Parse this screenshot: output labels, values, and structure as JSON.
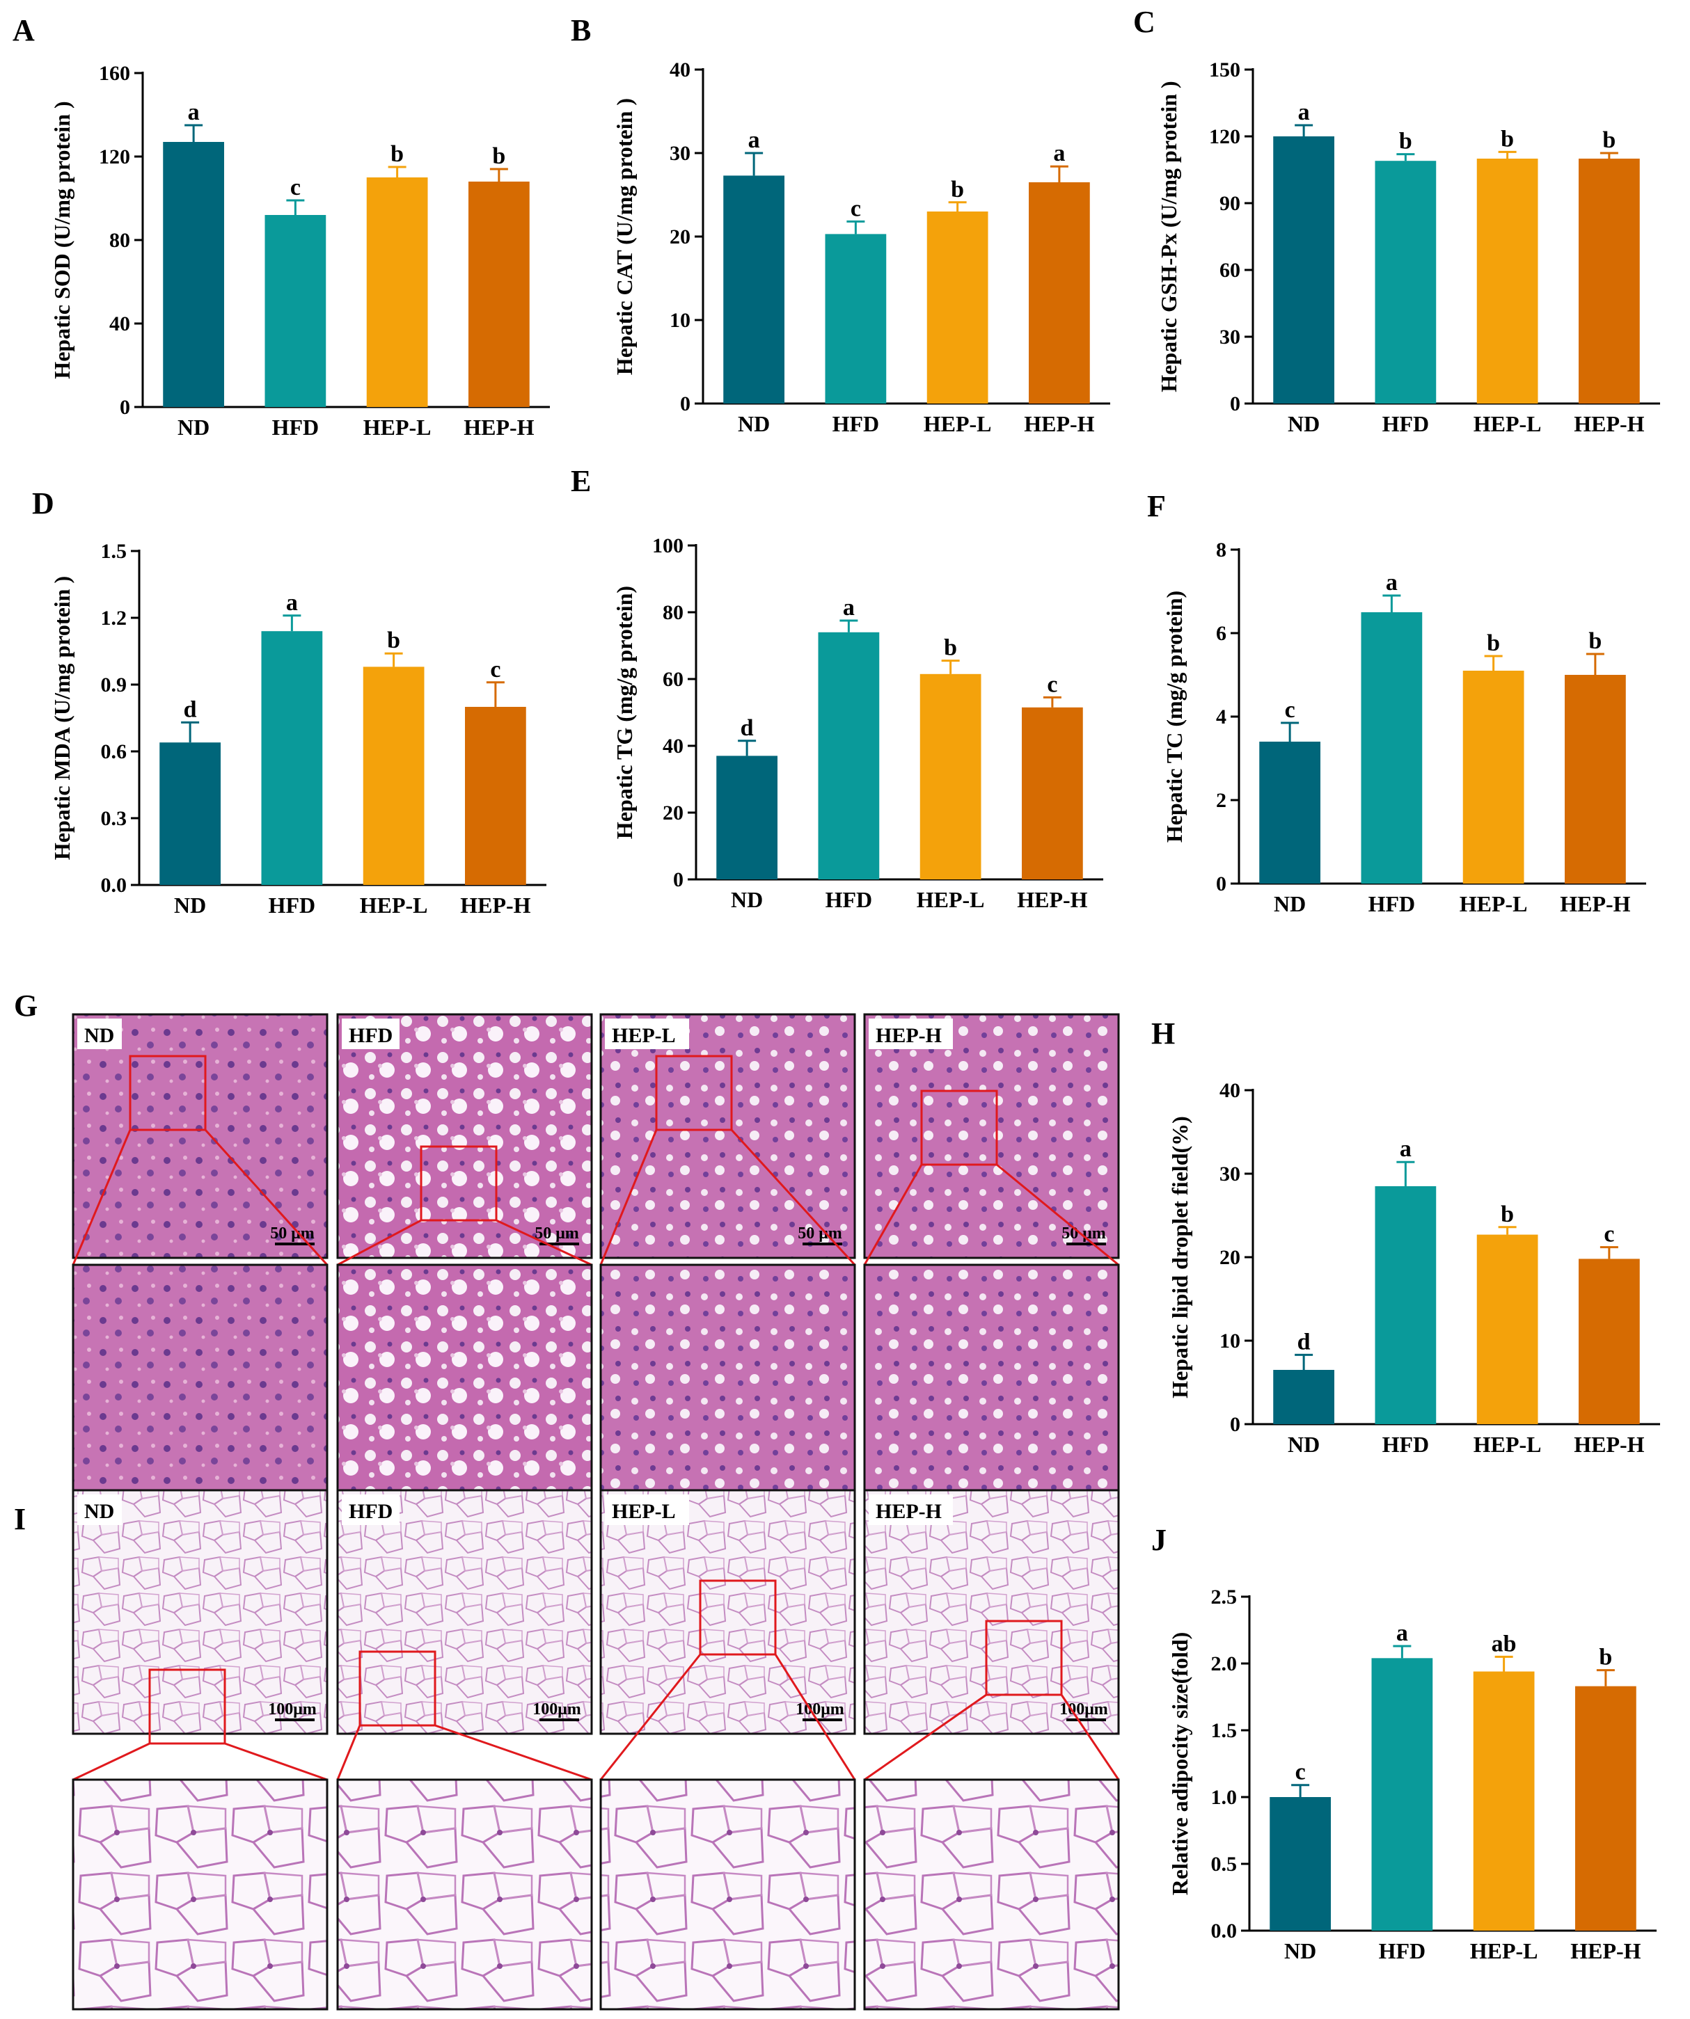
{
  "groups": [
    "ND",
    "HFD",
    "HEP-L",
    "HEP-H"
  ],
  "colors": {
    "ND": "#00667a",
    "HFD": "#0a9a9a",
    "HEP-L": "#f4a20b",
    "HEP-H": "#d66b02",
    "tissue_liver": "#c974b6",
    "tissue_fat": "#f7eef6",
    "zoom_box": "#e0191d"
  },
  "chart_data": [
    {
      "panel": "A",
      "type": "bar",
      "categories": [
        "ND",
        "HFD",
        "HEP-L",
        "HEP-H"
      ],
      "values": [
        127,
        92,
        110,
        108
      ],
      "errors": [
        8,
        7,
        5,
        6
      ],
      "sig": [
        "a",
        "c",
        "b",
        "b"
      ],
      "ylabel": "Hepatic SOD (U/mg protein )",
      "ylim": [
        0,
        160
      ],
      "yticks": [
        0,
        40,
        80,
        120,
        160
      ]
    },
    {
      "panel": "B",
      "type": "bar",
      "categories": [
        "ND",
        "HFD",
        "HEP-L",
        "HEP-H"
      ],
      "values": [
        27.3,
        20.3,
        23,
        26.5
      ],
      "errors": [
        2.7,
        1.5,
        1.1,
        1.9
      ],
      "sig": [
        "a",
        "c",
        "b",
        "a"
      ],
      "ylabel": "Hepatic CAT (U/mg protein )",
      "ylim": [
        0,
        40
      ],
      "yticks": [
        0,
        10,
        20,
        30,
        40
      ]
    },
    {
      "panel": "C",
      "type": "bar",
      "categories": [
        "ND",
        "HFD",
        "HEP-L",
        "HEP-H"
      ],
      "values": [
        120,
        109,
        110,
        110
      ],
      "errors": [
        5,
        3,
        3,
        2.5
      ],
      "sig": [
        "a",
        "b",
        "b",
        "b"
      ],
      "ylabel": "Hepatic GSH-Px (U/mg protein )",
      "ylim": [
        0,
        150
      ],
      "yticks": [
        0,
        30,
        60,
        90,
        120,
        150
      ]
    },
    {
      "panel": "D",
      "type": "bar",
      "categories": [
        "ND",
        "HFD",
        "HEP-L",
        "HEP-H"
      ],
      "values": [
        0.64,
        1.14,
        0.98,
        0.8
      ],
      "errors": [
        0.09,
        0.07,
        0.06,
        0.11
      ],
      "sig": [
        "d",
        "a",
        "b",
        "c"
      ],
      "ylabel": "Hepatic MDA (U/mg protein )",
      "ylim": [
        0,
        1.5
      ],
      "yticks": [
        "0.0",
        "0.3",
        "0.6",
        "0.9",
        "1.2",
        "1.5"
      ]
    },
    {
      "panel": "E",
      "type": "bar",
      "categories": [
        "ND",
        "HFD",
        "HEP-L",
        "HEP-H"
      ],
      "values": [
        37,
        74,
        61.5,
        51.5
      ],
      "errors": [
        4.5,
        3.5,
        4,
        3
      ],
      "sig": [
        "d",
        "a",
        "b",
        "c"
      ],
      "ylabel": "Hepatic TG (mg/g protein)",
      "ylim": [
        0,
        100
      ],
      "yticks": [
        0,
        20,
        40,
        60,
        80,
        100
      ]
    },
    {
      "panel": "F",
      "type": "bar",
      "categories": [
        "ND",
        "HFD",
        "HEP-L",
        "HEP-H"
      ],
      "values": [
        3.4,
        6.5,
        5.1,
        5.0
      ],
      "errors": [
        0.45,
        0.4,
        0.35,
        0.5
      ],
      "sig": [
        "c",
        "a",
        "b",
        "b"
      ],
      "ylabel": "Hepatic TC (mg/g protein)",
      "ylim": [
        0,
        8
      ],
      "yticks": [
        0,
        2,
        4,
        6,
        8
      ]
    },
    {
      "panel": "H",
      "type": "bar",
      "categories": [
        "ND",
        "HFD",
        "HEP-L",
        "HEP-H"
      ],
      "values": [
        6.5,
        28.5,
        22.7,
        19.8
      ],
      "errors": [
        1.8,
        2.9,
        0.9,
        1.4
      ],
      "sig": [
        "d",
        "a",
        "b",
        "c"
      ],
      "ylabel": "Hepatic lipid droplet field(%)",
      "ylim": [
        0,
        40
      ],
      "yticks": [
        0,
        10,
        20,
        30,
        40
      ]
    },
    {
      "panel": "J",
      "type": "bar",
      "categories": [
        "ND",
        "HFD",
        "HEP-L",
        "HEP-H"
      ],
      "values": [
        1.0,
        2.04,
        1.94,
        1.83
      ],
      "errors": [
        0.09,
        0.09,
        0.11,
        0.12
      ],
      "sig": [
        "c",
        "a",
        "ab",
        "b"
      ],
      "ylabel": "Relative adipocity size(fold)",
      "ylim": [
        0,
        2.5
      ],
      "yticks": [
        "0.0",
        "0.5",
        "1.0",
        "1.5",
        "2.0",
        "2.5"
      ]
    }
  ],
  "micrographs": {
    "G": {
      "labels": [
        "ND",
        "HFD",
        "HEP-L",
        "HEP-H"
      ],
      "scale_bar": "50 μm",
      "tissue": "liver"
    },
    "I": {
      "labels": [
        "ND",
        "HFD",
        "HEP-L",
        "HEP-H"
      ],
      "scale_bar": "100μm",
      "tissue": "adipose"
    }
  }
}
